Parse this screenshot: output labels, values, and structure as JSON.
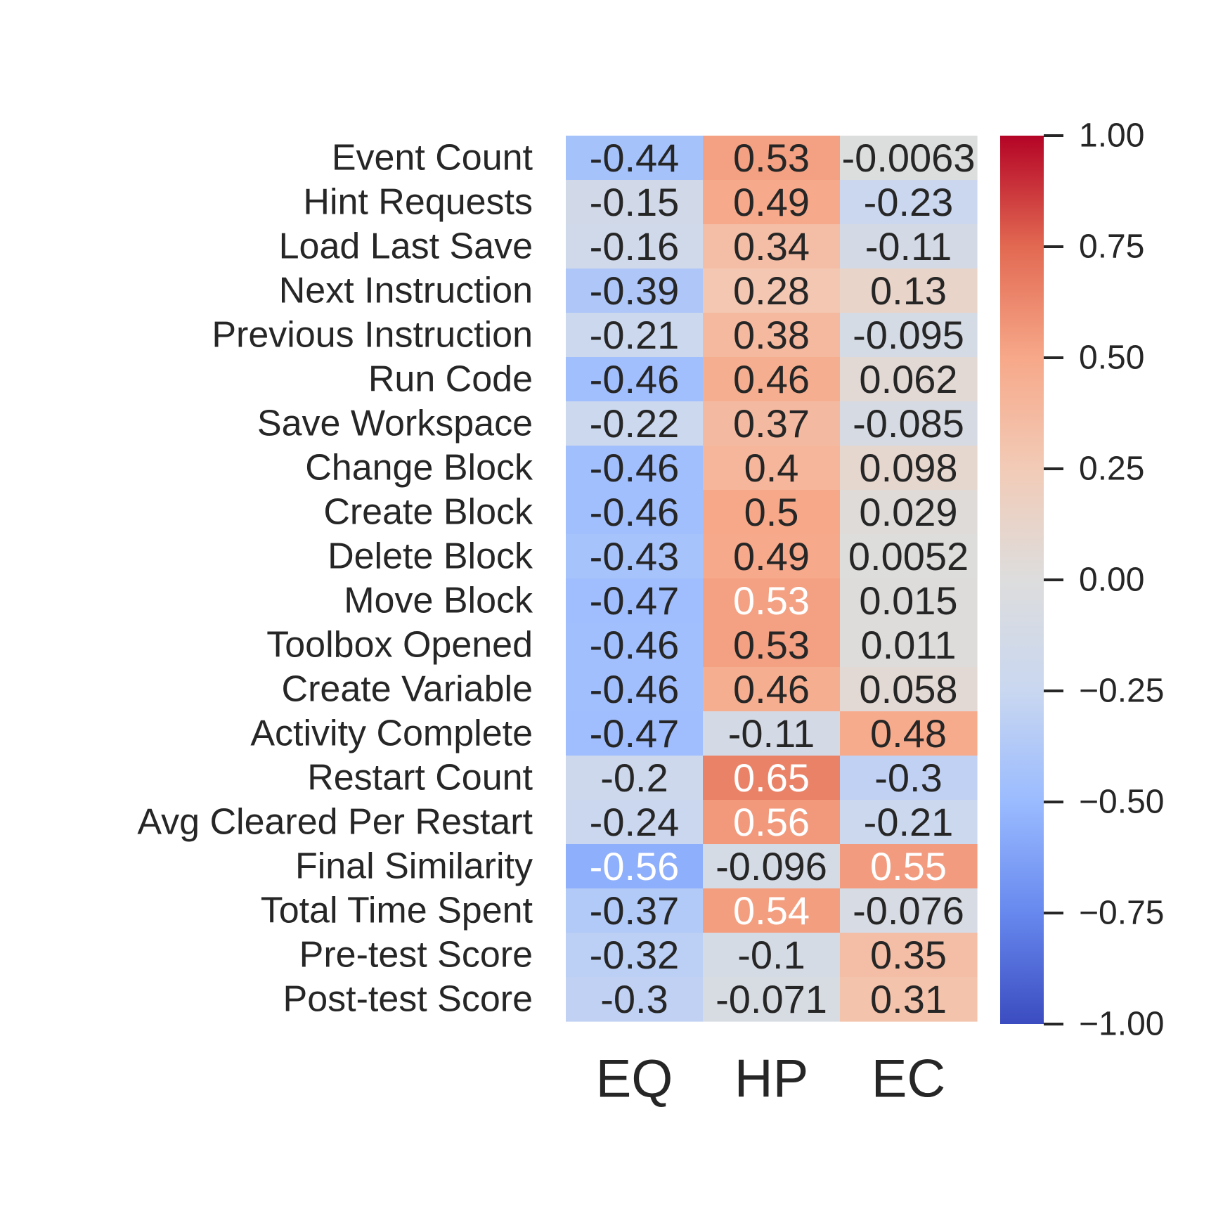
{
  "chart_data": {
    "type": "heatmap",
    "title": "",
    "xlabel": "",
    "ylabel": "",
    "columns": [
      "EQ",
      "HP",
      "EC"
    ],
    "rows": [
      "Event Count",
      "Hint Requests",
      "Load Last Save",
      "Next Instruction",
      "Previous Instruction",
      "Run Code",
      "Save Workspace",
      "Change Block",
      "Create Block",
      "Delete Block",
      "Move Block",
      "Toolbox Opened",
      "Create Variable",
      "Activity Complete",
      "Restart Count",
      "Avg Cleared Per Restart",
      "Final Similarity",
      "Total Time Spent",
      "Pre-test Score",
      "Post-test Score"
    ],
    "values": [
      [
        -0.44,
        0.53,
        -0.0063
      ],
      [
        -0.15,
        0.49,
        -0.23
      ],
      [
        -0.16,
        0.34,
        -0.11
      ],
      [
        -0.39,
        0.28,
        0.13
      ],
      [
        -0.21,
        0.38,
        -0.095
      ],
      [
        -0.46,
        0.46,
        0.062
      ],
      [
        -0.22,
        0.37,
        -0.085
      ],
      [
        -0.46,
        0.4,
        0.098
      ],
      [
        -0.46,
        0.5,
        0.029
      ],
      [
        -0.43,
        0.49,
        0.0052
      ],
      [
        -0.47,
        0.53,
        0.015
      ],
      [
        -0.46,
        0.53,
        0.011
      ],
      [
        -0.46,
        0.46,
        0.058
      ],
      [
        -0.47,
        -0.11,
        0.48
      ],
      [
        -0.2,
        0.65,
        -0.3
      ],
      [
        -0.24,
        0.56,
        -0.21
      ],
      [
        -0.56,
        -0.096,
        0.55
      ],
      [
        -0.37,
        0.54,
        -0.076
      ],
      [
        -0.32,
        -0.1,
        0.35
      ],
      [
        -0.3,
        -0.071,
        0.31
      ]
    ],
    "cell_labels": [
      [
        "-0.44",
        "0.53",
        "-0.0063"
      ],
      [
        "-0.15",
        "0.49",
        "-0.23"
      ],
      [
        "-0.16",
        "0.34",
        "-0.11"
      ],
      [
        "-0.39",
        "0.28",
        "0.13"
      ],
      [
        "-0.21",
        "0.38",
        "-0.095"
      ],
      [
        "-0.46",
        "0.46",
        "0.062"
      ],
      [
        "-0.22",
        "0.37",
        "-0.085"
      ],
      [
        "-0.46",
        "0.4",
        "0.098"
      ],
      [
        "-0.46",
        "0.5",
        "0.029"
      ],
      [
        "-0.43",
        "0.49",
        "0.0052"
      ],
      [
        "-0.47",
        "0.53",
        "0.015"
      ],
      [
        "-0.46",
        "0.53",
        "0.011"
      ],
      [
        "-0.46",
        "0.46",
        "0.058"
      ],
      [
        "-0.47",
        "-0.11",
        "0.48"
      ],
      [
        "-0.2",
        "0.65",
        "-0.3"
      ],
      [
        "-0.24",
        "0.56",
        "-0.21"
      ],
      [
        "-0.56",
        "-0.096",
        "0.55"
      ],
      [
        "-0.37",
        "0.54",
        "-0.076"
      ],
      [
        "-0.32",
        "-0.1",
        "0.35"
      ],
      [
        "-0.3",
        "-0.071",
        "0.31"
      ]
    ],
    "light_text_cells": [
      [
        10,
        1
      ],
      [
        14,
        1
      ],
      [
        15,
        1
      ],
      [
        16,
        0
      ],
      [
        16,
        2
      ],
      [
        17,
        1
      ]
    ],
    "colormap": "coolwarm",
    "vmin": -1.0,
    "vmax": 1.0,
    "colorbar": {
      "ticks": [
        1.0,
        0.75,
        0.5,
        0.25,
        0.0,
        -0.25,
        -0.5,
        -0.75,
        -1.0
      ],
      "tick_labels": [
        "1.00",
        "0.75",
        "0.50",
        "0.25",
        "0.00",
        "−0.25",
        "−0.50",
        "−0.75",
        "−1.00"
      ]
    },
    "grid": false,
    "colors": {
      "text_dark": "#262626",
      "text_light": "#ffffff",
      "colormap_stops": [
        "#3b4cc0",
        "#6788ee",
        "#9abbff",
        "#c9d7f0",
        "#dddddd",
        "#f2cbb7",
        "#f7a889",
        "#e26952",
        "#b40426"
      ]
    }
  }
}
